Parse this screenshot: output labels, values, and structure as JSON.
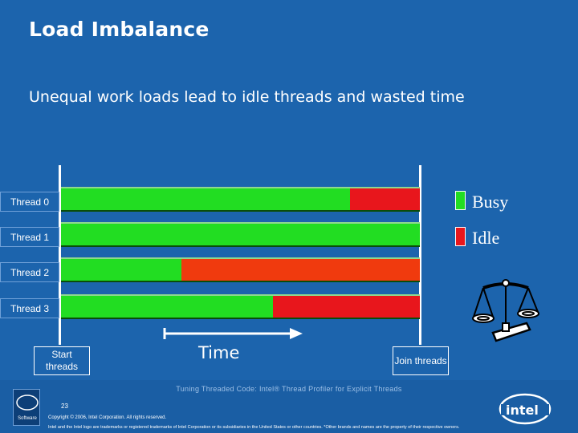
{
  "slide": {
    "title": "Load Imbalance",
    "subtitle": "Unequal work loads lead to idle threads and wasted time"
  },
  "threads": [
    {
      "label": "Thread 0",
      "busy_fraction": 0.805,
      "idle_color": "#e8161c"
    },
    {
      "label": "Thread 1",
      "busy_fraction": 1.0,
      "idle_color": "#e8161c"
    },
    {
      "label": "Thread 2",
      "busy_fraction": 0.335,
      "idle_color": "#f03a0e"
    },
    {
      "label": "Thread 3",
      "busy_fraction": 0.59,
      "idle_color": "#e8161c"
    }
  ],
  "legend": {
    "busy_label": "Busy",
    "idle_label": "Idle",
    "busy_color": "#22dd22",
    "idle_color": "#e8161c"
  },
  "markers": {
    "start_label": "Start threads",
    "join_label": "Join threads",
    "time_label": "Time"
  },
  "icons": {
    "balance": "scales-of-justice-icon",
    "time_arrow": "arrow-right-icon"
  },
  "footer": {
    "caption": "Tuning Threaded Code: Intel® Thread Profiler for Explicit Threads",
    "page_number": "23",
    "copyright": "Copyright © 2006, Intel Corporation. All rights reserved.",
    "legal": "Intel and the Intel logo are trademarks or registered trademarks of Intel Corporation or its subsidiaries in the United States or other countries. *Other brands and names are the property of their respective owners.",
    "badge_text": "Software",
    "logo_text": "intel"
  },
  "colors": {
    "background": "#1c64ad",
    "busy": "#22dd22"
  }
}
